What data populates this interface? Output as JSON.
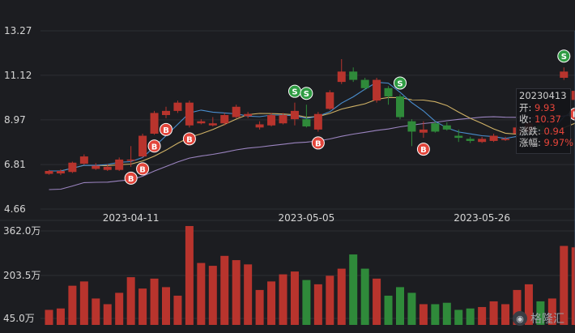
{
  "chart_data": {
    "type": "candlestick",
    "price_axis": {
      "ticks": [
        "13.27",
        "11.12",
        "8.97",
        "6.81",
        "4.66"
      ],
      "ylim": [
        4.66,
        13.27
      ]
    },
    "volume_axis": {
      "ticks": [
        "362.0万",
        "203.5万",
        "45.0万"
      ],
      "ylim": [
        45.0,
        362.0
      ]
    },
    "x_ticks": [
      {
        "label": "2023-04-11",
        "index": 7
      },
      {
        "label": "2023-05-05",
        "index": 22
      },
      {
        "label": "2023-05-26",
        "index": 37
      }
    ],
    "candles": [
      {
        "o": 6.36,
        "c": 6.5,
        "h": 6.55,
        "l": 6.32,
        "v": 50,
        "s": ""
      },
      {
        "o": 6.38,
        "c": 6.5,
        "h": 6.58,
        "l": 6.3,
        "v": 55,
        "s": ""
      },
      {
        "o": 6.45,
        "c": 6.9,
        "h": 6.95,
        "l": 6.4,
        "v": 135,
        "s": ""
      },
      {
        "o": 6.85,
        "c": 7.2,
        "h": 7.3,
        "l": 6.8,
        "v": 150,
        "s": ""
      },
      {
        "o": 6.6,
        "c": 6.75,
        "h": 6.88,
        "l": 6.55,
        "v": 90,
        "s": ""
      },
      {
        "o": 6.55,
        "c": 6.7,
        "h": 6.82,
        "l": 6.5,
        "v": 70,
        "s": ""
      },
      {
        "o": 6.55,
        "c": 7.05,
        "h": 7.15,
        "l": 6.5,
        "v": 110,
        "s": ""
      },
      {
        "o": 7.05,
        "c": 7.05,
        "h": 7.7,
        "l": 6.7,
        "v": 165,
        "s": "B"
      },
      {
        "o": 7.2,
        "c": 8.2,
        "h": 8.3,
        "l": 7.15,
        "v": 125,
        "s": "B"
      },
      {
        "o": 8.3,
        "c": 9.3,
        "h": 9.4,
        "l": 8.25,
        "v": 160,
        "s": "B"
      },
      {
        "o": 9.2,
        "c": 9.4,
        "h": 9.6,
        "l": 9.05,
        "v": 130,
        "s": "B"
      },
      {
        "o": 9.4,
        "c": 9.8,
        "h": 9.9,
        "l": 9.3,
        "v": 100,
        "s": ""
      },
      {
        "o": 8.7,
        "c": 9.8,
        "h": 9.9,
        "l": 8.6,
        "v": 345,
        "s": "B"
      },
      {
        "o": 8.8,
        "c": 8.9,
        "h": 9.0,
        "l": 8.75,
        "v": 215,
        "s": ""
      },
      {
        "o": 8.7,
        "c": 8.8,
        "h": 9.1,
        "l": 8.65,
        "v": 205,
        "s": ""
      },
      {
        "o": 8.8,
        "c": 9.2,
        "h": 9.3,
        "l": 8.7,
        "v": 240,
        "s": ""
      },
      {
        "o": 9.1,
        "c": 9.6,
        "h": 9.7,
        "l": 9.05,
        "v": 225,
        "s": ""
      },
      {
        "o": 9.15,
        "c": 9.25,
        "h": 9.35,
        "l": 9.05,
        "v": 210,
        "s": ""
      },
      {
        "o": 8.6,
        "c": 8.75,
        "h": 8.9,
        "l": 8.5,
        "v": 120,
        "s": ""
      },
      {
        "o": 8.7,
        "c": 9.2,
        "h": 9.3,
        "l": 8.65,
        "v": 150,
        "s": ""
      },
      {
        "o": 8.8,
        "c": 9.2,
        "h": 9.3,
        "l": 8.75,
        "v": 175,
        "s": ""
      },
      {
        "o": 9.0,
        "c": 9.4,
        "h": 9.8,
        "l": 8.7,
        "v": 185,
        "s": "S"
      },
      {
        "o": 9.0,
        "c": 8.65,
        "h": 9.7,
        "l": 8.6,
        "v": 155,
        "s": "S"
      },
      {
        "o": 8.5,
        "c": 9.25,
        "h": 9.35,
        "l": 8.4,
        "v": 140,
        "s": "B"
      },
      {
        "o": 9.5,
        "c": 10.3,
        "h": 10.4,
        "l": 9.45,
        "v": 170,
        "s": ""
      },
      {
        "o": 10.8,
        "c": 11.3,
        "h": 11.9,
        "l": 10.7,
        "v": 195,
        "s": ""
      },
      {
        "o": 11.3,
        "c": 10.9,
        "h": 11.5,
        "l": 10.8,
        "v": 245,
        "s": ""
      },
      {
        "o": 10.9,
        "c": 10.5,
        "h": 11.0,
        "l": 10.4,
        "v": 195,
        "s": ""
      },
      {
        "o": 9.9,
        "c": 10.9,
        "h": 11.0,
        "l": 9.8,
        "v": 160,
        "s": ""
      },
      {
        "o": 10.5,
        "c": 10.1,
        "h": 10.6,
        "l": 9.7,
        "v": 100,
        "s": ""
      },
      {
        "o": 10.1,
        "c": 9.1,
        "h": 10.2,
        "l": 9.0,
        "v": 130,
        "s": "S"
      },
      {
        "o": 8.9,
        "c": 8.4,
        "h": 9.0,
        "l": 7.7,
        "v": 110,
        "s": ""
      },
      {
        "o": 8.35,
        "c": 8.5,
        "h": 8.9,
        "l": 8.1,
        "v": 70,
        "s": "B"
      },
      {
        "o": 8.8,
        "c": 8.4,
        "h": 8.9,
        "l": 8.35,
        "v": 70,
        "s": ""
      },
      {
        "o": 8.7,
        "c": 8.5,
        "h": 8.85,
        "l": 8.45,
        "v": 75,
        "s": ""
      },
      {
        "o": 8.2,
        "c": 8.1,
        "h": 8.5,
        "l": 7.9,
        "v": 50,
        "s": ""
      },
      {
        "o": 8.05,
        "c": 7.95,
        "h": 8.15,
        "l": 7.85,
        "v": 55,
        "s": ""
      },
      {
        "o": 7.9,
        "c": 8.05,
        "h": 8.15,
        "l": 7.85,
        "v": 60,
        "s": ""
      },
      {
        "o": 7.95,
        "c": 8.2,
        "h": 8.3,
        "l": 7.9,
        "v": 80,
        "s": ""
      },
      {
        "o": 8.05,
        "c": 8.05,
        "h": 8.15,
        "l": 7.95,
        "v": 70,
        "s": ""
      },
      {
        "o": 8.3,
        "c": 8.6,
        "h": 8.7,
        "l": 8.2,
        "v": 120,
        "s": ""
      },
      {
        "o": 8.4,
        "c": 8.8,
        "h": 8.9,
        "l": 8.3,
        "v": 140,
        "s": ""
      },
      {
        "o": 8.7,
        "c": 8.45,
        "h": 8.8,
        "l": 8.3,
        "v": 80,
        "s": ""
      },
      {
        "o": 8.4,
        "c": 8.4,
        "h": 8.8,
        "l": 8.2,
        "v": 90,
        "s": ""
      },
      {
        "o": 11.0,
        "c": 11.3,
        "h": 11.5,
        "l": 10.9,
        "v": 275,
        "s": "S"
      },
      {
        "o": 9.93,
        "c": 10.37,
        "h": 12.4,
        "l": 9.8,
        "v": 270,
        "s": "B"
      }
    ],
    "tooltip": {
      "date": "20230413",
      "rows": [
        {
          "label": "开:",
          "value": "9.93"
        },
        {
          "label": "收:",
          "value": "10.37"
        },
        {
          "label": "涨跌:",
          "value": "0.94"
        },
        {
          "label": "涨幅:",
          "value": "9.97%"
        }
      ]
    },
    "colors": {
      "up": "#b8342d",
      "down": "#2f8a3a",
      "ma5": "#4a8fd0",
      "ma10": "#d0b266",
      "ma30": "#9b84c0",
      "grid": "#2c2e34",
      "text": "#d6d6d6"
    }
  },
  "brand": {
    "text": "格隆汇",
    "icon": "logo-icon"
  }
}
